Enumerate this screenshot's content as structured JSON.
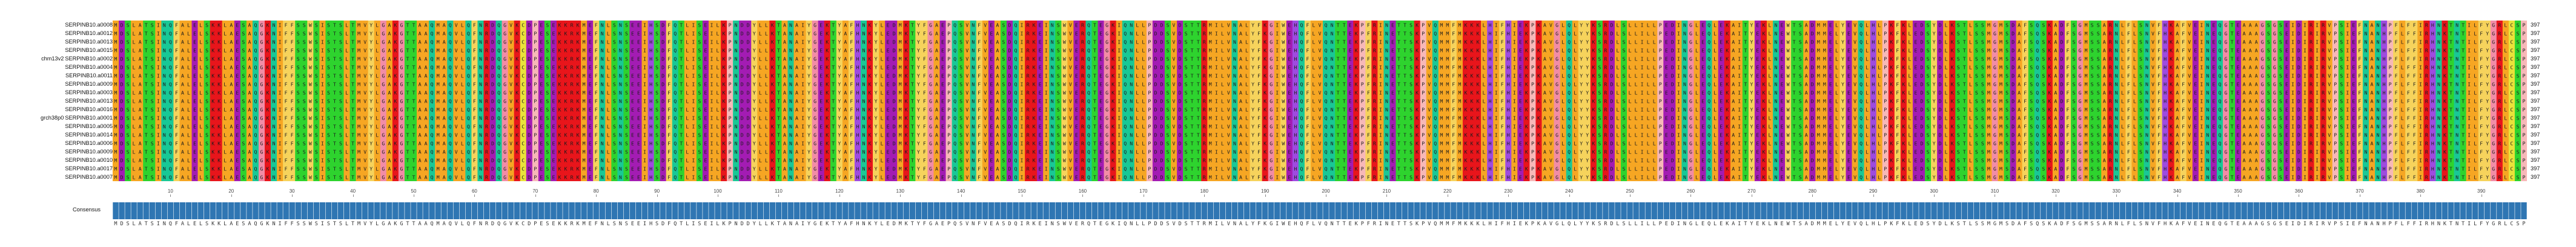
{
  "alignment": {
    "sequences": [
      {
        "prefix": "",
        "name": "SERPINB10.a0008",
        "end": "397"
      },
      {
        "prefix": "",
        "name": "SERPINB10.a0012",
        "end": "397"
      },
      {
        "prefix": "",
        "name": "SERPINB10.a0013",
        "end": "397"
      },
      {
        "prefix": "",
        "name": "SERPINB10.a0015",
        "end": "397"
      },
      {
        "prefix": "chm13v2",
        "name": "SERPINB10.a0002",
        "end": "397"
      },
      {
        "prefix": "",
        "name": "SERPINB10.a0004",
        "end": "397"
      },
      {
        "prefix": "",
        "name": "SERPINB10.a0011",
        "end": "397"
      },
      {
        "prefix": "",
        "name": "SERPINB10.a0009",
        "end": "397"
      },
      {
        "prefix": "",
        "name": "SERPINB10.a0003",
        "end": "397"
      },
      {
        "prefix": "",
        "name": "SERPINB10.a0013",
        "end": "397"
      },
      {
        "prefix": "",
        "name": "SERPINB10.a0016",
        "end": "397"
      },
      {
        "prefix": "grch38p0",
        "name": "SERPINB10.a0001",
        "end": "397"
      },
      {
        "prefix": "",
        "name": "SERPINB10.a0005",
        "end": "397"
      },
      {
        "prefix": "",
        "name": "SERPINB10.a0014",
        "end": "397"
      },
      {
        "prefix": "",
        "name": "SERPINB10.a0006",
        "end": "397"
      },
      {
        "prefix": "",
        "name": "SERPINB10.a0009",
        "end": "397"
      },
      {
        "prefix": "",
        "name": "SERPINB10.a0010",
        "end": "397"
      },
      {
        "prefix": "",
        "name": "SERPINB10.a0017",
        "end": "397"
      },
      {
        "prefix": "",
        "name": "SERPINB10.a0007",
        "end": "397"
      }
    ],
    "residues": "MDSLATSINQFALELSKKLAESAQGKNIFFSSWSISTSLTMVYLGAKGTTAAQMAQVLQFNRDQGVKCDPESEKKRKMEFNLSNSEEIHSDFQTLISEILKPNDDYLLKTANAIYGEKTYAFHNKYLEDMKTYFGAEPQSVNFVEASDQIRKEINSWVERQTEGKIQNLLPDDSVDSTTRMILVNALYFKGIWEHQFLVQNTTEKPFRINETTSKPVQMMFMKKKLHIFHIEKPKAVGLQLYYKSRDLSLLILLPEDINGLEQLEKAITYEKLNEWTSADMMELYEVQLHLPKFKLEDSYDLKSTLSSMGMSDAFSQSKADFSGMSSARNLFLSNVFHKAFVEINEQGTEAAAGSGSEIDIRIRVPSIEFNANHPFLFFIRHNKTNTILFYGRLCSP",
    "length": "397",
    "consensus_label": "Consensus",
    "ruler_ticks": [
      "10",
      "20",
      "30",
      "40",
      "50",
      "60",
      "70",
      "80",
      "90",
      "100",
      "110",
      "120",
      "130",
      "140",
      "150",
      "160",
      "170",
      "180",
      "190",
      "200",
      "210",
      "220",
      "230",
      "240",
      "250",
      "260",
      "270",
      "280",
      "290",
      "300",
      "310",
      "320",
      "330",
      "340",
      "350",
      "360",
      "370",
      "380",
      "390"
    ],
    "colors": {
      "A": "#f6a623",
      "V": "#f6a623",
      "I": "#f6a623",
      "L": "#f6a623",
      "M": "#f6a623",
      "F": "#f6d35c",
      "W": "#f6d35c",
      "Y": "#f6d35c",
      "K": "#e8151b",
      "R": "#e8151b",
      "H": "#9e4be0",
      "D": "#a31cb3",
      "E": "#a31cb3",
      "S": "#2ed32e",
      "T": "#2ed32e",
      "N": "#19c896",
      "Q": "#19c896",
      "G": "#f28ca6",
      "P": "#f7b8b8",
      "C": "#e9e23a",
      "consensus_bar": "#2f76b3"
    }
  }
}
